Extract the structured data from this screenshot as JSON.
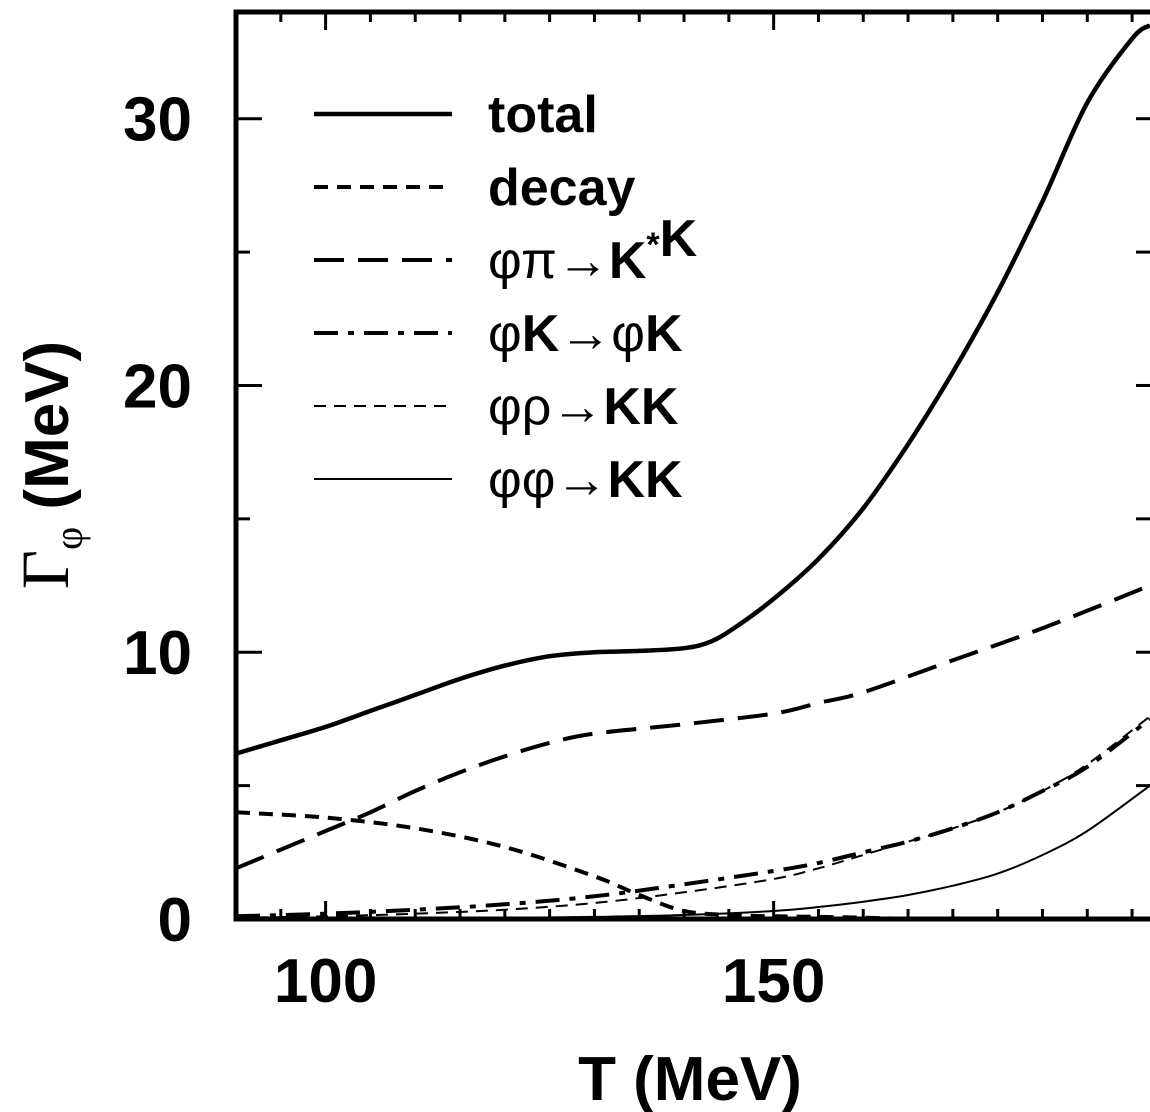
{
  "chart_data": {
    "type": "line",
    "xlabel": "T (MeV)",
    "ylabel": {
      "main": "Γ",
      "sub": "φ",
      "rest": " (MeV)"
    },
    "xlim": [
      90,
      192
    ],
    "ylim": [
      0,
      34
    ],
    "x_ticks": [
      100,
      150
    ],
    "y_ticks": [
      0,
      10,
      20,
      30
    ],
    "grid": false,
    "legend_position": "top-left",
    "series": [
      {
        "name": "total",
        "legend_parts": [
          {
            "text": "total",
            "bold": true
          }
        ],
        "style": "solid-thick",
        "x": [
          90,
          95,
          100,
          105,
          110,
          115,
          120,
          125,
          130,
          135,
          140,
          143,
          146,
          150,
          155,
          160,
          165,
          170,
          175,
          180,
          185,
          190,
          192
        ],
        "y": [
          6.2,
          6.7,
          7.2,
          7.8,
          8.4,
          9.0,
          9.5,
          9.85,
          10.0,
          10.05,
          10.15,
          10.4,
          11.0,
          12.0,
          13.5,
          15.4,
          17.8,
          20.5,
          23.5,
          26.9,
          30.6,
          33.0,
          33.5
        ]
      },
      {
        "name": "decay",
        "legend_parts": [
          {
            "text": "decay",
            "bold": true
          }
        ],
        "style": "short-dash-thick",
        "x": [
          90,
          100,
          110,
          120,
          130,
          135,
          140,
          145,
          150,
          155,
          160,
          165
        ],
        "y": [
          4.0,
          3.8,
          3.4,
          2.7,
          1.6,
          0.9,
          0.3,
          0.15,
          0.1,
          0.08,
          0.05,
          0.0
        ]
      },
      {
        "name": "φπ→K*K",
        "legend_parts": [
          {
            "text": "φπ→",
            "bold": false
          },
          {
            "text": "K",
            "bold": true
          },
          {
            "text": "*",
            "bold": true,
            "super": true
          },
          {
            "text": "K",
            "bold": true
          }
        ],
        "style": "long-dash-thick",
        "x": [
          90,
          95,
          100,
          105,
          110,
          115,
          120,
          125,
          130,
          140,
          150,
          155,
          160,
          170,
          180,
          192
        ],
        "y": [
          1.9,
          2.6,
          3.3,
          4.0,
          4.8,
          5.5,
          6.1,
          6.6,
          6.95,
          7.3,
          7.7,
          8.1,
          8.5,
          9.7,
          10.9,
          12.5
        ]
      },
      {
        "name": "φK→φK",
        "legend_parts": [
          {
            "text": "φ",
            "bold": false
          },
          {
            "text": "K",
            "bold": true
          },
          {
            "text": "→φ",
            "bold": false
          },
          {
            "text": "K",
            "bold": true
          }
        ],
        "style": "dash-dot-thick",
        "x": [
          90,
          100,
          110,
          120,
          130,
          140,
          150,
          155,
          160,
          165,
          170,
          175,
          180,
          185,
          192
        ],
        "y": [
          0.1,
          0.2,
          0.35,
          0.55,
          0.85,
          1.3,
          1.8,
          2.1,
          2.5,
          2.9,
          3.4,
          4.0,
          4.8,
          5.7,
          7.5
        ]
      },
      {
        "name": "φρ→KK",
        "legend_parts": [
          {
            "text": "φρ→",
            "bold": false
          },
          {
            "text": "KK",
            "bold": true
          }
        ],
        "style": "short-dash-thin",
        "x": [
          90,
          100,
          110,
          120,
          130,
          140,
          150,
          155,
          160,
          165,
          170,
          175,
          180,
          185,
          192
        ],
        "y": [
          0.05,
          0.1,
          0.2,
          0.35,
          0.6,
          1.0,
          1.5,
          1.9,
          2.4,
          2.9,
          3.4,
          4.0,
          4.8,
          5.8,
          7.6
        ]
      },
      {
        "name": "φφ→KK",
        "legend_parts": [
          {
            "text": "φφ→",
            "bold": false
          },
          {
            "text": "KK",
            "bold": true
          }
        ],
        "style": "solid-thin",
        "x": [
          90,
          100,
          110,
          120,
          130,
          140,
          150,
          155,
          160,
          165,
          170,
          175,
          180,
          185,
          192
        ],
        "y": [
          0.0,
          0.01,
          0.02,
          0.04,
          0.08,
          0.15,
          0.3,
          0.45,
          0.65,
          0.9,
          1.25,
          1.7,
          2.4,
          3.3,
          5.0
        ]
      }
    ]
  }
}
